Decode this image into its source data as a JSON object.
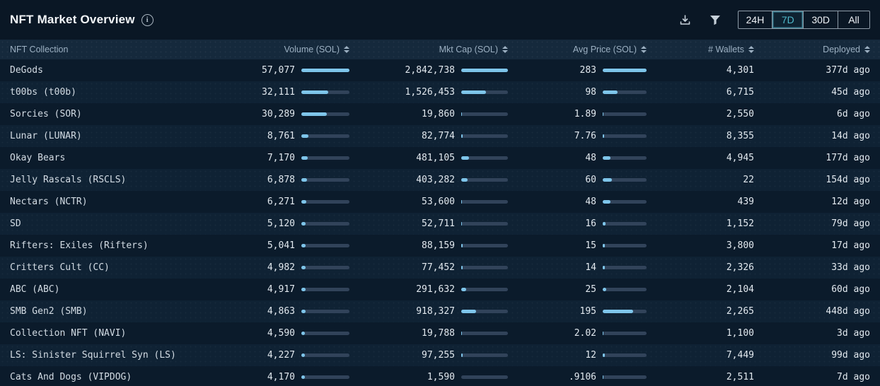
{
  "header": {
    "title": "NFT Market Overview",
    "info_icon": "info-circle",
    "download_icon": "download-tray",
    "filter_icon": "funnel"
  },
  "controls": {
    "ranges": [
      {
        "label": "24H"
      },
      {
        "label": "7D"
      },
      {
        "label": "30D"
      },
      {
        "label": "All"
      }
    ],
    "selected_range": "7D"
  },
  "colors": {
    "accent_teal": "#4fb9cb",
    "bar_fill": "#7ec5ea",
    "bar_track": "#31435a",
    "row_odd": "#0b1b2b",
    "row_even": "#0f2234",
    "header_band": "#15293c"
  },
  "table": {
    "columns": [
      {
        "label": "NFT Collection",
        "sortable": false
      },
      {
        "label": "Volume (SOL)",
        "sortable": true
      },
      {
        "label": "Mkt Cap (SOL)",
        "sortable": true
      },
      {
        "label": "Avg Price (SOL)",
        "sortable": true
      },
      {
        "label": "# Wallets",
        "sortable": true
      },
      {
        "label": "Deployed",
        "sortable": true
      }
    ],
    "rows": [
      {
        "collection": "DeGods",
        "volume": "57,077",
        "volume_n": 57077,
        "mktcap": "2,842,738",
        "mktcap_n": 2842738,
        "avg_price": "283",
        "avg_n": 283,
        "wallets": "4,301",
        "deployed": "377d ago"
      },
      {
        "collection": "t00bs (t00b)",
        "volume": "32,111",
        "volume_n": 32111,
        "mktcap": "1,526,453",
        "mktcap_n": 1526453,
        "avg_price": "98",
        "avg_n": 98,
        "wallets": "6,715",
        "deployed": "45d ago"
      },
      {
        "collection": "Sorcies (SOR)",
        "volume": "30,289",
        "volume_n": 30289,
        "mktcap": "19,860",
        "mktcap_n": 19860,
        "avg_price": "1.89",
        "avg_n": 1.89,
        "wallets": "2,550",
        "deployed": "6d ago"
      },
      {
        "collection": "Lunar (LUNAR)",
        "volume": "8,761",
        "volume_n": 8761,
        "mktcap": "82,774",
        "mktcap_n": 82774,
        "avg_price": "7.76",
        "avg_n": 7.76,
        "wallets": "8,355",
        "deployed": "14d ago"
      },
      {
        "collection": "Okay Bears",
        "volume": "7,170",
        "volume_n": 7170,
        "mktcap": "481,105",
        "mktcap_n": 481105,
        "avg_price": "48",
        "avg_n": 48,
        "wallets": "4,945",
        "deployed": "177d ago"
      },
      {
        "collection": "Jelly Rascals (RSCLS)",
        "volume": "6,878",
        "volume_n": 6878,
        "mktcap": "403,282",
        "mktcap_n": 403282,
        "avg_price": "60",
        "avg_n": 60,
        "wallets": "22",
        "deployed": "154d ago"
      },
      {
        "collection": "Nectars (NCTR)",
        "volume": "6,271",
        "volume_n": 6271,
        "mktcap": "53,600",
        "mktcap_n": 53600,
        "avg_price": "48",
        "avg_n": 48,
        "wallets": "439",
        "deployed": "12d ago"
      },
      {
        "collection": "SD",
        "volume": "5,120",
        "volume_n": 5120,
        "mktcap": "52,711",
        "mktcap_n": 52711,
        "avg_price": "16",
        "avg_n": 16,
        "wallets": "1,152",
        "deployed": "79d ago"
      },
      {
        "collection": "Rifters: Exiles (Rifters)",
        "volume": "5,041",
        "volume_n": 5041,
        "mktcap": "88,159",
        "mktcap_n": 88159,
        "avg_price": "15",
        "avg_n": 15,
        "wallets": "3,800",
        "deployed": "17d ago"
      },
      {
        "collection": "Critters Cult (CC)",
        "volume": "4,982",
        "volume_n": 4982,
        "mktcap": "77,452",
        "mktcap_n": 77452,
        "avg_price": "14",
        "avg_n": 14,
        "wallets": "2,326",
        "deployed": "33d ago"
      },
      {
        "collection": "ABC (ABC)",
        "volume": "4,917",
        "volume_n": 4917,
        "mktcap": "291,632",
        "mktcap_n": 291632,
        "avg_price": "25",
        "avg_n": 25,
        "wallets": "2,104",
        "deployed": "60d ago"
      },
      {
        "collection": "SMB Gen2 (SMB)",
        "volume": "4,863",
        "volume_n": 4863,
        "mktcap": "918,327",
        "mktcap_n": 918327,
        "avg_price": "195",
        "avg_n": 195,
        "wallets": "2,265",
        "deployed": "448d ago"
      },
      {
        "collection": "Collection NFT (NAVI)",
        "volume": "4,590",
        "volume_n": 4590,
        "mktcap": "19,788",
        "mktcap_n": 19788,
        "avg_price": "2.02",
        "avg_n": 2.02,
        "wallets": "1,100",
        "deployed": "3d ago"
      },
      {
        "collection": "LS: Sinister Squirrel Syn (LS)",
        "volume": "4,227",
        "volume_n": 4227,
        "mktcap": "97,255",
        "mktcap_n": 97255,
        "avg_price": "12",
        "avg_n": 12,
        "wallets": "7,449",
        "deployed": "99d ago"
      },
      {
        "collection": "Cats And Dogs (VIPDOG)",
        "volume": "4,170",
        "volume_n": 4170,
        "mktcap": "1,590",
        "mktcap_n": 1590,
        "avg_price": ".9106",
        "avg_n": 0.9106,
        "wallets": "2,511",
        "deployed": "7d ago"
      }
    ]
  }
}
